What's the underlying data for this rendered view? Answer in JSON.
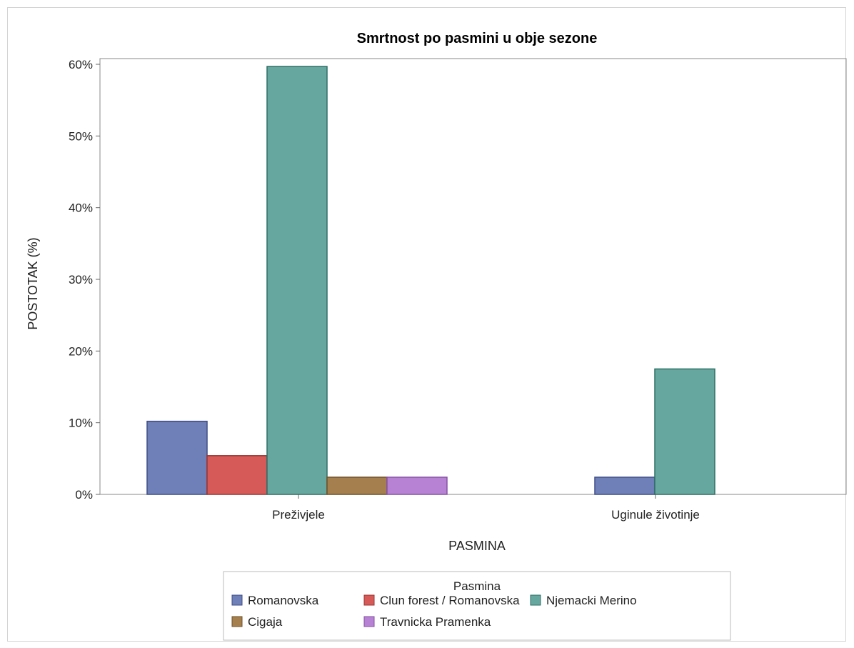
{
  "chart_data": {
    "type": "bar",
    "title": "Smrtnost po pasmini u obje sezone",
    "xlabel": "PASMINA",
    "ylabel": "POSTOTAK (%)",
    "categories": [
      "Preživjele",
      "Uginule životinje"
    ],
    "ylim": [
      0,
      60
    ],
    "yticks": [
      "0%",
      "10%",
      "20%",
      "30%",
      "40%",
      "50%",
      "60%"
    ],
    "grid": false,
    "legend_title": "Pasmina",
    "legend_position": "bottom",
    "series": [
      {
        "name": "Romanovska",
        "color": "#6f7fb7",
        "stroke": "#3f4e86",
        "values": [
          10.2,
          2.4
        ]
      },
      {
        "name": "Clun forest / Romanovska",
        "color": "#d65a57",
        "stroke": "#9a3533",
        "values": [
          5.4,
          0
        ]
      },
      {
        "name": "Njemacki Merino",
        "color": "#66a89f",
        "stroke": "#2f6e65",
        "values": [
          59.7,
          17.5
        ]
      },
      {
        "name": "Cigaja",
        "color": "#a57f4d",
        "stroke": "#6e5128",
        "values": [
          2.4,
          0
        ]
      },
      {
        "name": "Travnicka Pramenka",
        "color": "#b781d4",
        "stroke": "#8552a3",
        "values": [
          2.4,
          0
        ]
      }
    ]
  }
}
